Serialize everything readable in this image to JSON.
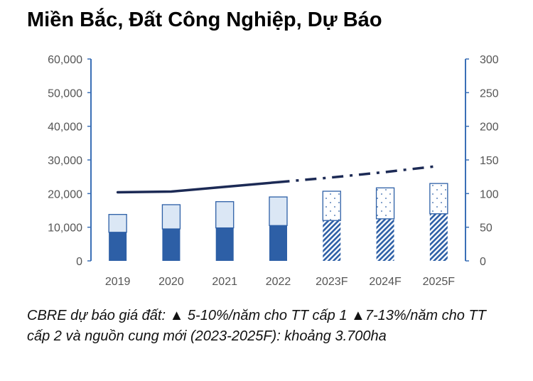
{
  "title": "Miền Bắc, Đất Công Nghiệp, Dự Báo",
  "caption": "CBRE dự báo giá đất: ▲ 5-10%/năm cho TT cấp 1 ▲7-13%/năm cho TT cấp 2 và nguồn cung mới (2023-2025F): khoảng 3.700ha",
  "colors": {
    "dark_bar": "#2d5fa6",
    "light_bar": "#dbe7f5",
    "bar_edge": "#2d5fa6",
    "line": "#1c2a55",
    "axis": "#3a6fb6"
  },
  "chart_data": {
    "type": "bar",
    "categories": [
      "2019",
      "2020",
      "2021",
      "2022",
      "2023F",
      "2024F",
      "2025F"
    ],
    "series": [
      {
        "values": [
          8500,
          9500,
          9800,
          10500,
          12000,
          12500,
          14000
        ],
        "style": "solid-dark / hatched for forecast"
      },
      {
        "values": [
          5300,
          7200,
          7800,
          8500,
          8700,
          9200,
          9000
        ],
        "style": "light / dotted for forecast"
      },
      {
        "type": "line",
        "axis": "right",
        "values": [
          102,
          103,
          110,
          117,
          124,
          132,
          141
        ],
        "style": "solid actual, dashed forecast"
      }
    ],
    "ylim": [
      0,
      60000
    ],
    "y_ticks": [
      "0",
      "10,000",
      "20,000",
      "30,000",
      "40,000",
      "50,000",
      "60,000"
    ],
    "y2lim": [
      0,
      300
    ],
    "y2_ticks": [
      "0",
      "50",
      "100",
      "150",
      "200",
      "250",
      "300"
    ],
    "forecast_start_index": 4,
    "grid": false,
    "legend": "none"
  }
}
